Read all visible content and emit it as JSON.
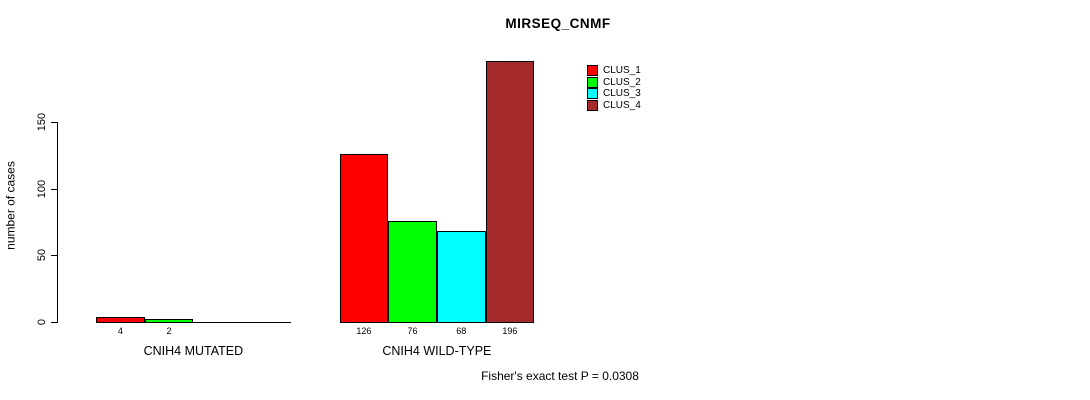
{
  "chart_data": {
    "type": "bar",
    "title": "MIRSEQ_CNMF",
    "ylabel": "number of cases",
    "xlabel": "",
    "categories": [
      "CNIH4 MUTATED",
      "CNIH4 WILD-TYPE"
    ],
    "series": [
      {
        "name": "CLUS_1",
        "color": "#ff0000",
        "values": [
          4,
          126
        ]
      },
      {
        "name": "CLUS_2",
        "color": "#00ff00",
        "values": [
          2,
          76
        ]
      },
      {
        "name": "CLUS_3",
        "color": "#00ffff",
        "values": [
          0,
          68
        ]
      },
      {
        "name": "CLUS_4",
        "color": "#a52a2a",
        "values": [
          0,
          196
        ]
      }
    ],
    "bar_value_labels": [
      [
        "4",
        "2",
        "",
        ""
      ],
      [
        "126",
        "76",
        "68",
        "196"
      ]
    ],
    "yticks": [
      0,
      50,
      100,
      150
    ],
    "ylim": [
      0,
      150
    ],
    "grid": false,
    "legend_position": "top-right",
    "annotation": "Fisher's exact test P = 0.0308"
  }
}
